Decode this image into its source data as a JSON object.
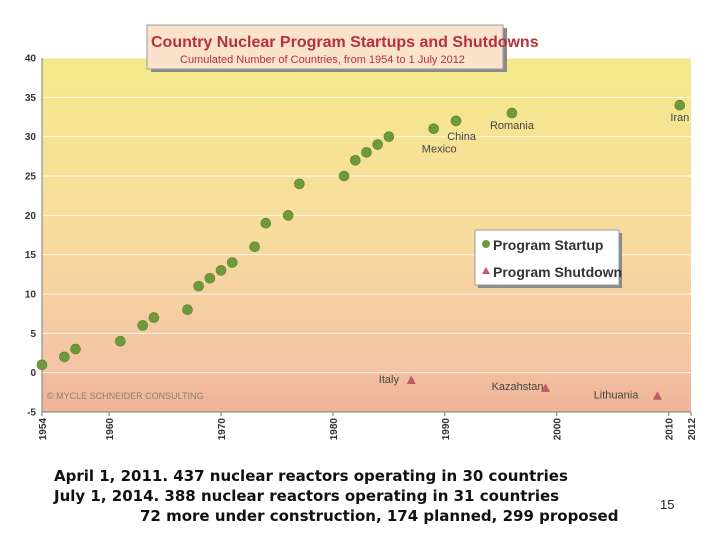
{
  "slide": {
    "footer_line1": "April 1, 2011. 437 nuclear reactors operating in 30 countries",
    "footer_line2": "July 1, 2014.  388 nuclear reactors operating in 31 countries",
    "footer_line3": "72 more under construction, 174 planned, 299 proposed",
    "page_number": "15"
  },
  "chart_data": {
    "type": "scatter",
    "title": "Country Nuclear Program Startups and Shutdowns",
    "subtitle": "Cumulated Number of Countries, from 1954 to 1 July 2012",
    "watermark": "© MYCLE SCHNEIDER CONSULTING",
    "xlim": [
      1954,
      2012
    ],
    "ylim": [
      -5,
      40
    ],
    "x_ticks": [
      "1954",
      "1960",
      "1970",
      "1980",
      "1990",
      "2000",
      "2010",
      "2012"
    ],
    "y_ticks": [
      "40",
      "35",
      "30",
      "25",
      "20",
      "15",
      "10",
      "5",
      "0",
      "-5"
    ],
    "legend": {
      "placement": "right",
      "items": [
        "Program Startup",
        "Program Shutdown"
      ]
    },
    "colors": {
      "startup": "#6f9a3c",
      "shutdown": "#c05a6a",
      "title": "#b5313b"
    },
    "series": [
      {
        "name": "Program Startup",
        "points": [
          {
            "x": 1954,
            "y": 1
          },
          {
            "x": 1956,
            "y": 2
          },
          {
            "x": 1957,
            "y": 3
          },
          {
            "x": 1961,
            "y": 4
          },
          {
            "x": 1963,
            "y": 6
          },
          {
            "x": 1964,
            "y": 7
          },
          {
            "x": 1967,
            "y": 8
          },
          {
            "x": 1968,
            "y": 11
          },
          {
            "x": 1969,
            "y": 12
          },
          {
            "x": 1970,
            "y": 13
          },
          {
            "x": 1971,
            "y": 14
          },
          {
            "x": 1973,
            "y": 16
          },
          {
            "x": 1974,
            "y": 19
          },
          {
            "x": 1976,
            "y": 20
          },
          {
            "x": 1977,
            "y": 24
          },
          {
            "x": 1981,
            "y": 25
          },
          {
            "x": 1982,
            "y": 27
          },
          {
            "x": 1983,
            "y": 28
          },
          {
            "x": 1984,
            "y": 29
          },
          {
            "x": 1985,
            "y": 30
          },
          {
            "x": 1989,
            "y": 31
          },
          {
            "x": 1991,
            "y": 32
          },
          {
            "x": 1996,
            "y": 33
          },
          {
            "x": 2011,
            "y": 34
          }
        ]
      },
      {
        "name": "Program Shutdown",
        "points": [
          {
            "x": 1987,
            "y": -1
          },
          {
            "x": 1999,
            "y": -2
          },
          {
            "x": 2009,
            "y": -3
          }
        ]
      }
    ],
    "annotations": [
      {
        "text": "Mexico",
        "x": 1989.5,
        "y": 28
      },
      {
        "text": "China",
        "x": 1991.5,
        "y": 29.6
      },
      {
        "text": "Romania",
        "x": 1996,
        "y": 31
      },
      {
        "text": "Iran",
        "x": 2011,
        "y": 32
      },
      {
        "text": "Italy",
        "x": 1985,
        "y": -1.3
      },
      {
        "text": "Kazahstan",
        "x": 1996.5,
        "y": -2.2
      },
      {
        "text": "Lithuania",
        "x": 2005.3,
        "y": -3.3
      }
    ]
  }
}
